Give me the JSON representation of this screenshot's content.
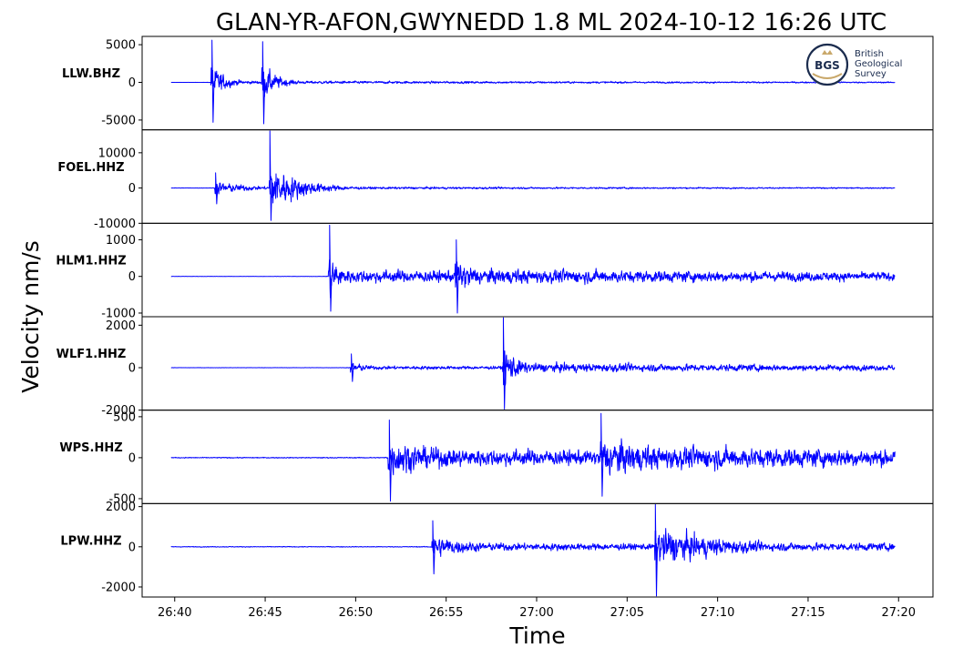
{
  "chart_data": {
    "type": "line",
    "title": "GLAN-YR-AFON,GWYNEDD 1.8 ML   2024-10-12 16:26 UTC",
    "xlabel": "Time",
    "ylabel": "Velocity nm/s",
    "x_ticks": [
      "26:40",
      "26:45",
      "26:50",
      "26:55",
      "27:00",
      "27:05",
      "27:10",
      "27:15",
      "27:20"
    ],
    "x_range_seconds_past_16_26": [
      38.2,
      81.9
    ],
    "trace_span_seconds": [
      39.8,
      79.8
    ],
    "line_color": "#0000ff",
    "grid": false,
    "logo": {
      "name": "bgs-logo",
      "badge_text": "BGS",
      "text_lines": [
        "British",
        "Geological",
        "Survey"
      ]
    },
    "panels": [
      {
        "station": "LLW.BHZ",
        "ylim": [
          -6300,
          6100
        ],
        "y_ticks": [
          {
            "value": 5000,
            "label": "5000"
          },
          {
            "value": 0,
            "label": "0"
          },
          {
            "value": -5000,
            "label": "-5000"
          }
        ],
        "noise": 25,
        "phases": [
          {
            "t": 42.0,
            "amp": 5600,
            "amp_neg": 5300,
            "decay": 0.9,
            "coda": 0.08
          },
          {
            "t": 44.8,
            "amp": 5400,
            "amp_neg": 5500,
            "decay": 1.0,
            "coda": 0.06
          }
        ]
      },
      {
        "station": "FOEL.HHZ",
        "ylim": [
          -10000,
          16500
        ],
        "y_ticks": [
          {
            "value": 10000,
            "label": "10000"
          },
          {
            "value": 0,
            "label": "0"
          },
          {
            "value": -10000,
            "label": "-10000"
          }
        ],
        "noise": 90,
        "phases": [
          {
            "t": 42.2,
            "amp": 4300,
            "amp_neg": 4500,
            "decay": 2.2,
            "coda": 0.12
          },
          {
            "t": 45.2,
            "amp": 16200,
            "amp_neg": 9200,
            "decay": 2.0,
            "coda": 0.05
          }
        ]
      },
      {
        "station": "HLM1.HHZ",
        "ylim": [
          -1100,
          1450
        ],
        "y_ticks": [
          {
            "value": 1000,
            "label": "1000"
          },
          {
            "value": 0,
            "label": "0"
          },
          {
            "value": -1000,
            "label": "-1000"
          }
        ],
        "noise": 8,
        "phases": [
          {
            "t": 48.5,
            "amp": 1400,
            "amp_neg": 950,
            "decay": 0.9,
            "coda": 0.28
          },
          {
            "t": 55.5,
            "amp": 1000,
            "amp_neg": 1000,
            "decay": 2.2,
            "coda": 0.45
          }
        ]
      },
      {
        "station": "WLF1.HHZ",
        "ylim": [
          -2000,
          2400
        ],
        "y_ticks": [
          {
            "value": 2000,
            "label": "2000"
          },
          {
            "value": 0,
            "label": "0"
          },
          {
            "value": -2000,
            "label": "-2000"
          }
        ],
        "noise": 15,
        "phases": [
          {
            "t": 49.7,
            "amp": 650,
            "amp_neg": 650,
            "decay": 1.2,
            "coda": 0.3
          },
          {
            "t": 58.1,
            "amp": 2350,
            "amp_neg": 1950,
            "decay": 1.1,
            "coda": 0.2
          }
        ]
      },
      {
        "station": "WPS.HHZ",
        "ylim": [
          -560,
          580
        ],
        "y_ticks": [
          {
            "value": 500,
            "label": "500"
          },
          {
            "value": 0,
            "label": "0"
          },
          {
            "value": -500,
            "label": "-500"
          }
        ],
        "noise": 12,
        "phases": [
          {
            "t": 51.8,
            "amp": 460,
            "amp_neg": 530,
            "decay": 6.0,
            "coda": 0.55
          },
          {
            "t": 63.5,
            "amp": 540,
            "amp_neg": 470,
            "decay": 6.0,
            "coda": 0.6
          }
        ]
      },
      {
        "station": "LPW.HHZ",
        "ylim": [
          -2500,
          2150
        ],
        "y_ticks": [
          {
            "value": 2000,
            "label": "2000"
          },
          {
            "value": 0,
            "label": "0"
          },
          {
            "value": -2000,
            "label": "-2000"
          }
        ],
        "noise": 40,
        "phases": [
          {
            "t": 54.2,
            "amp": 1300,
            "amp_neg": 1350,
            "decay": 3.0,
            "coda": 0.35
          },
          {
            "t": 66.5,
            "amp": 2150,
            "amp_neg": 2450,
            "decay": 5.0,
            "coda": 0.25
          }
        ]
      }
    ]
  }
}
